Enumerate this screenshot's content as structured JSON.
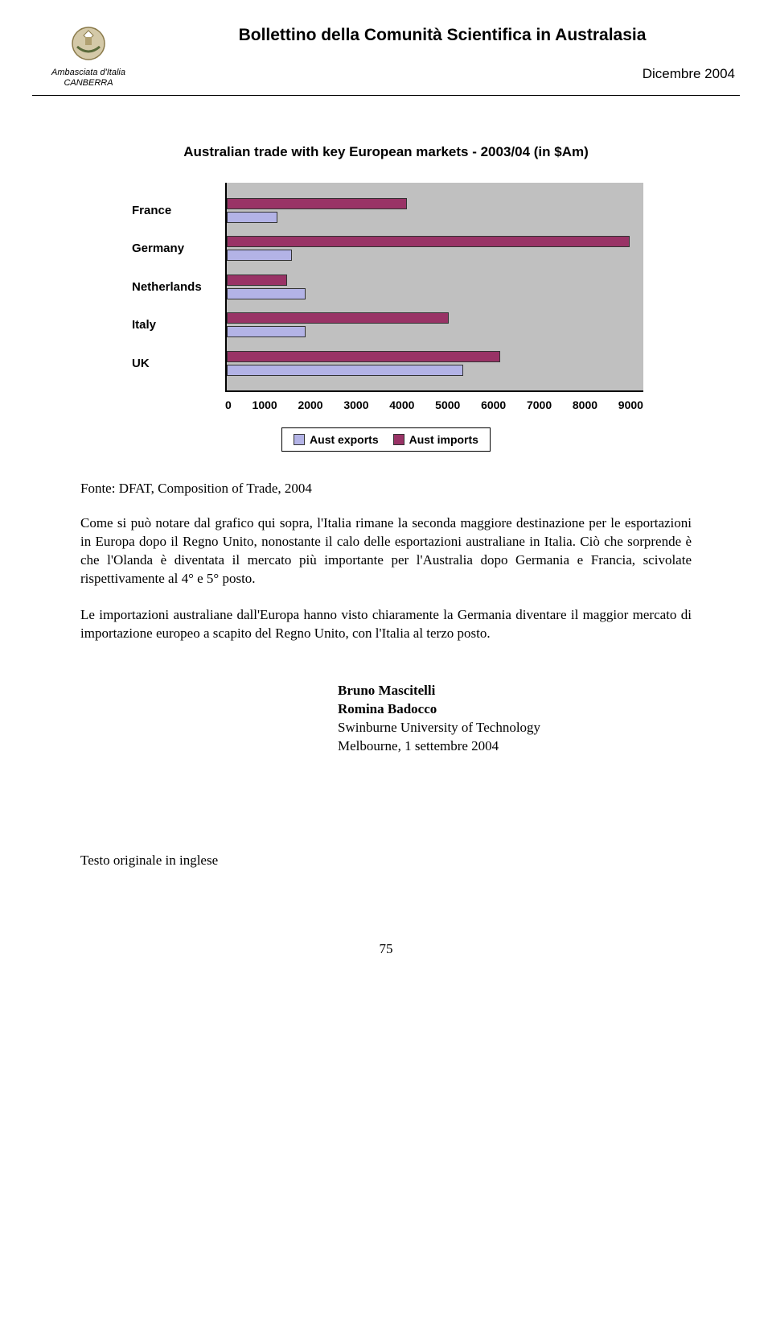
{
  "header": {
    "embassy_line1": "Ambasciata d'Italia",
    "embassy_line2": "CANBERRA",
    "bulletin_title": "Bollettino della Comunità Scientifica in Australasia",
    "date": "Dicembre 2004"
  },
  "chart": {
    "type": "horizontal_grouped_bar",
    "title": "Australian trade with key European markets - 2003/04 (in $Am)",
    "categories": [
      "France",
      "Germany",
      "Netherlands",
      "Italy",
      "UK"
    ],
    "series": [
      {
        "name": "Aust exports",
        "color": "#b3b3e6",
        "values": [
          1100,
          1400,
          1700,
          1700,
          5100
        ]
      },
      {
        "name": "Aust imports",
        "color": "#993366",
        "values": [
          3900,
          8700,
          1300,
          4800,
          5900
        ]
      }
    ],
    "xlim": [
      0,
      9000
    ],
    "xtick_step": 1000,
    "xticks": [
      "0",
      "1000",
      "2000",
      "3000",
      "4000",
      "5000",
      "6000",
      "7000",
      "8000",
      "9000"
    ],
    "plot_bg": "#c0c0c0",
    "legend_labels": [
      "Aust exports",
      "Aust imports"
    ],
    "label_fontsize": 15,
    "tick_fontsize": 14,
    "title_fontsize": 17
  },
  "source": "Fonte: DFAT, Composition of Trade, 2004",
  "paragraph1": "Come si può notare dal grafico qui sopra, l'Italia rimane la seconda maggiore destinazione per le esportazioni in Europa dopo il Regno Unito, nonostante il calo delle esportazioni australiane in Italia. Ciò che sorprende è che l'Olanda è diventata il mercato più importante per l'Australia dopo Germania e Francia, scivolate rispettivamente al 4° e 5° posto.",
  "paragraph2": "Le importazioni australiane dall'Europa hanno visto chiaramente la Germania diventare il maggior mercato di importazione europeo a scapito del Regno Unito, con l'Italia al terzo posto.",
  "authors": {
    "name1": "Bruno Mascitelli",
    "name2": "Romina Badocco",
    "affiliation": "Swinburne University of Technology",
    "place_date": "Melbourne, 1 settembre 2004"
  },
  "footnote": "Testo originale in inglese",
  "page_number": "75"
}
